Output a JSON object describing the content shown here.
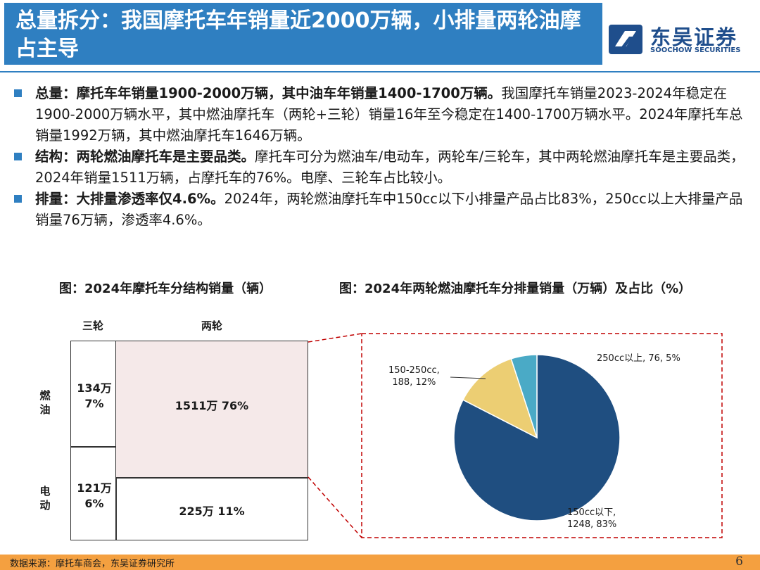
{
  "header": {
    "title": "总量拆分：我国摩托车年销量近2000万辆，小排量两轮油摩占主导",
    "logo_cn": "东吴证券",
    "logo_en": "SOOCHOW SECURITIES"
  },
  "bullets": [
    {
      "bold": "总量：摩托车年销量1900-2000万辆，其中油车年销量1400-1700万辆。",
      "text": "我国摩托车销量2023-2024年稳定在1900-2000万辆水平，其中燃油摩托车（两轮+三轮）销量16年至今稳定在1400-1700万辆水平。2024年摩托车总销量1992万辆，其中燃油摩托车1646万辆。"
    },
    {
      "bold": "结构：两轮燃油摩托车是主要品类。",
      "text": "摩托车可分为燃油车/电动车，两轮车/三轮车，其中两轮燃油摩托车是主要品类，2024年销量1511万辆，占摩托车的76%。电摩、三轮车占比较小。"
    },
    {
      "bold": "排量：大排量渗透率仅4.6%。",
      "text": "2024年，两轮燃油摩托车中150cc以下小排量产品占比83%，250cc以上大排量产品销量76万辆，渗透率4.6%。"
    }
  ],
  "left_chart": {
    "caption": "图：2024年摩托车分结构销量（辆）",
    "col_labels": [
      "三轮",
      "两轮"
    ],
    "row_labels": [
      "燃\n油",
      "电\n动"
    ],
    "cells": {
      "fuel_three": "134万\n7%",
      "fuel_two": "1511万 76%",
      "elec_three": "121万\n6%",
      "elec_two": "225万 11%"
    },
    "colors": {
      "highlight": "#f5e9e9",
      "plain": "#ffffff"
    }
  },
  "right_chart": {
    "caption": "图：2024年两轮燃油摩托车分排量销量（万辆）及占比（%）"
  },
  "chart_data": {
    "type": "pie",
    "categories": [
      "150cc以下",
      "150-250cc",
      "250cc以上"
    ],
    "values": [
      1248,
      188,
      76
    ],
    "percents": [
      83,
      12,
      5
    ],
    "labels": [
      "150cc以下,\n1248, 83%",
      "150-250cc,\n188, 12%",
      "250cc以上, 76, 5%"
    ],
    "colors": [
      "#1f4e80",
      "#ecce73",
      "#4aaac6"
    ]
  },
  "footer": {
    "source": "数据来源：摩托车商会，东吴证券研究所",
    "page": "6"
  }
}
